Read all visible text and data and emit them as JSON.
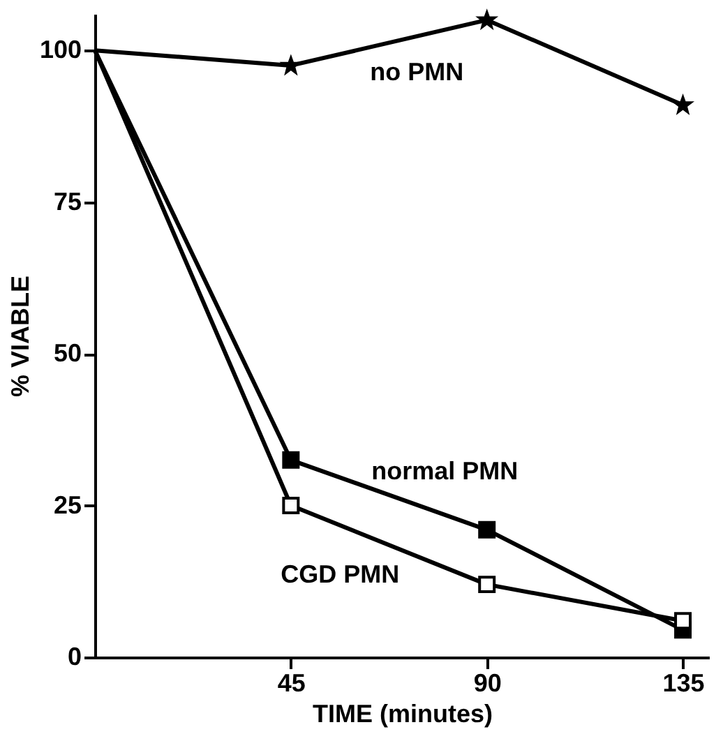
{
  "chart_data": {
    "type": "line",
    "xlabel": "TIME (minutes)",
    "ylabel": "% VIABLE",
    "x": [
      0,
      45,
      90,
      135
    ],
    "series": [
      {
        "name": "no PMN",
        "color": "#000000",
        "marker": "star",
        "values": [
          100,
          97.5,
          105,
          91
        ]
      },
      {
        "name": "normal PMN",
        "color": "#000000",
        "marker": "square",
        "values": [
          100,
          32.5,
          21,
          4.5
        ]
      },
      {
        "name": "CGD PMN",
        "color": "#000000",
        "marker": "square",
        "values": [
          100,
          25,
          12,
          6
        ]
      }
    ],
    "xlim": [
      0,
      141
    ],
    "xticks": [
      45,
      90,
      135
    ],
    "ylim": [
      0,
      106
    ],
    "yticks": [
      0,
      25,
      50,
      75,
      100
    ],
    "grid": false
  }
}
